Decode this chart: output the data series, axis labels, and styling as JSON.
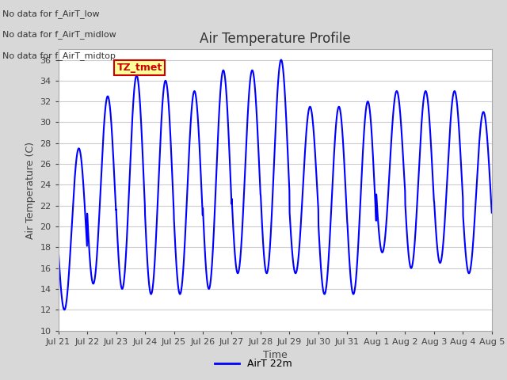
{
  "title": "Air Temperature Profile",
  "xlabel": "Time",
  "ylabel": "Air Temperature (C)",
  "ylim": [
    10,
    37
  ],
  "yticks": [
    10,
    12,
    14,
    16,
    18,
    20,
    22,
    24,
    26,
    28,
    30,
    32,
    34,
    36
  ],
  "line_color": "#0000ff",
  "line_width": 1.5,
  "legend_label": "AirT 22m",
  "bg_color": "#d8d8d8",
  "plot_bg_color": "#ffffff",
  "annotations": [
    "No data for f_AirT_low",
    "No data for f_AirT_midlow",
    "No data for f_AirT_midtop"
  ],
  "tz_label": "TZ_tmet",
  "date_labels": [
    "Jul 21",
    "Jul 22",
    "Jul 23",
    "Jul 24",
    "Jul 25",
    "Jul 26",
    "Jul 27",
    "Jul 28",
    "Jul 29",
    "Jul 30",
    "Jul 31",
    "Aug 1",
    "Aug 2",
    "Aug 3",
    "Aug 4",
    "Aug 5"
  ],
  "num_days": 15,
  "daily_mins": [
    12.0,
    14.5,
    14.0,
    13.5,
    13.5,
    14.0,
    15.5,
    15.5,
    15.5,
    13.5,
    13.5,
    17.5,
    16.0,
    16.5,
    15.5,
    16.5
  ],
  "daily_maxs": [
    27.5,
    32.5,
    34.5,
    34.0,
    33.0,
    35.0,
    35.0,
    36.0,
    31.5,
    31.5,
    32.0,
    33.0,
    33.0,
    33.0,
    31.0,
    30.5
  ]
}
